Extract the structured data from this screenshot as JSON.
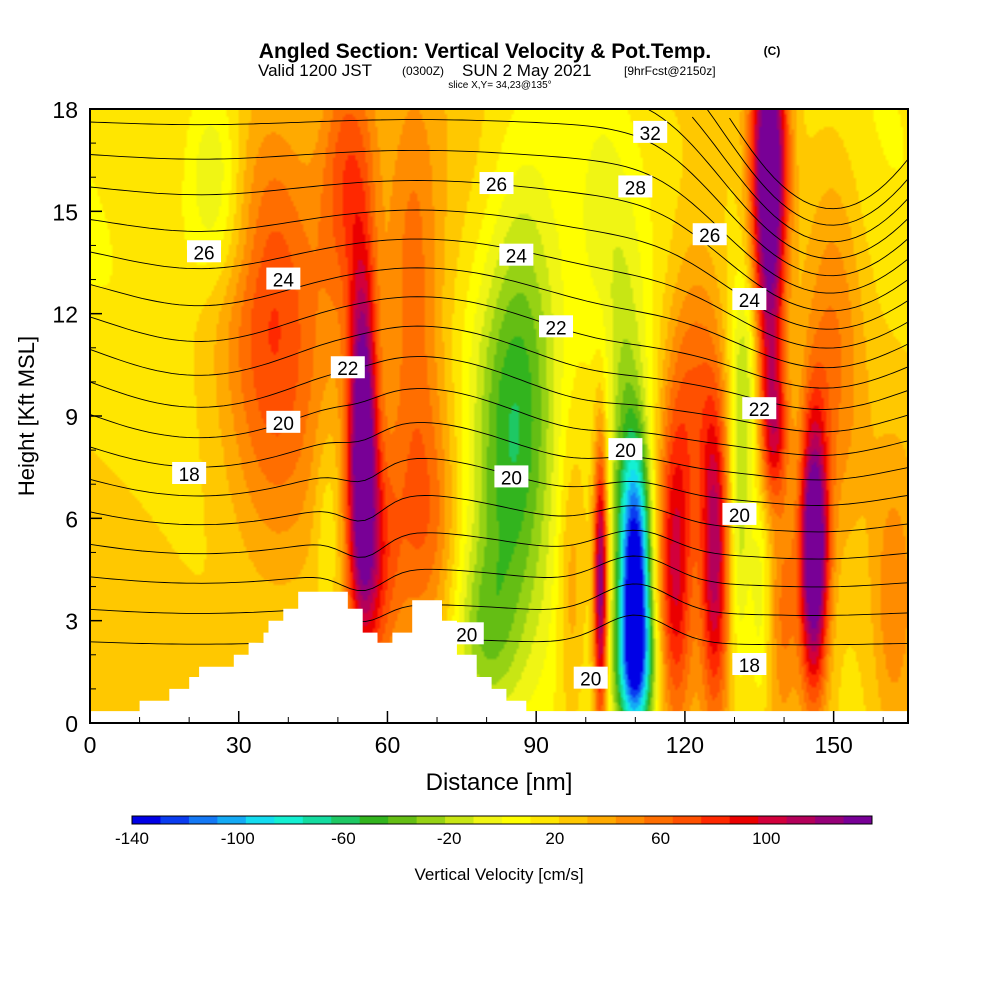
{
  "header": {
    "title_main": "Angled Section: Vertical Velocity & Pot.Temp.",
    "title_unit": "(C)",
    "valid_a": "Valid 1200 JST",
    "valid_b": "(0300Z)",
    "valid_c": "SUN 2 May 2021",
    "valid_d": "[9hrFcst@2150z]",
    "slice": "slice X,Y= 34,23@135°"
  },
  "chart_data": {
    "type": "heatmap",
    "title": "Angled Section: Vertical Velocity & Pot.Temp.",
    "xlabel": "Distance [nm]",
    "ylabel": "Height [Kft MSL]",
    "xlim": [
      0,
      165
    ],
    "ylim": [
      0,
      18
    ],
    "x_ticks": [
      0,
      30,
      60,
      90,
      120,
      150
    ],
    "y_ticks": [
      0,
      3,
      6,
      9,
      12,
      15,
      18
    ],
    "colorbar": {
      "label": "Vertical Velocity [cm/s]",
      "min": -140,
      "max": 140,
      "step": 10,
      "tick_labels": [
        -140,
        -100,
        -60,
        -20,
        20,
        60,
        100
      ],
      "colors": [
        "#0000e6",
        "#0a3cf0",
        "#1478f5",
        "#14aaf5",
        "#14dcf0",
        "#14f0d2",
        "#14dca0",
        "#1ec864",
        "#32b41e",
        "#64be14",
        "#96d214",
        "#c8e614",
        "#f0f514",
        "#ffff00",
        "#ffe600",
        "#ffc800",
        "#ffaa00",
        "#ff8c00",
        "#ff6e00",
        "#ff5000",
        "#ff2800",
        "#eb0000",
        "#d2003c",
        "#b4005a",
        "#960078",
        "#780096"
      ]
    },
    "contour_field": "Pot.Temp. (C)",
    "contour_labels": [
      {
        "text": "32",
        "x": 113,
        "y": 17.3
      },
      {
        "text": "28",
        "x": 110,
        "y": 15.7
      },
      {
        "text": "26",
        "x": 82,
        "y": 15.8
      },
      {
        "text": "26",
        "x": 125,
        "y": 14.3
      },
      {
        "text": "26",
        "x": 23,
        "y": 13.8
      },
      {
        "text": "24",
        "x": 39,
        "y": 13.0
      },
      {
        "text": "24",
        "x": 86,
        "y": 13.7
      },
      {
        "text": "24",
        "x": 133,
        "y": 12.4
      },
      {
        "text": "22",
        "x": 94,
        "y": 11.6
      },
      {
        "text": "22",
        "x": 52,
        "y": 10.4
      },
      {
        "text": "22",
        "x": 135,
        "y": 9.2
      },
      {
        "text": "20",
        "x": 39,
        "y": 8.8
      },
      {
        "text": "20",
        "x": 108,
        "y": 8.0
      },
      {
        "text": "20",
        "x": 85,
        "y": 7.2
      },
      {
        "text": "20",
        "x": 131,
        "y": 6.1
      },
      {
        "text": "20",
        "x": 76,
        "y": 2.6
      },
      {
        "text": "20",
        "x": 101,
        "y": 1.3
      },
      {
        "text": "18",
        "x": 20,
        "y": 7.3
      },
      {
        "text": "18",
        "x": 133,
        "y": 1.7
      }
    ],
    "terrain_profile": [
      [
        0,
        0.35
      ],
      [
        10,
        0.35
      ],
      [
        10,
        0.65
      ],
      [
        16,
        0.65
      ],
      [
        16,
        1.0
      ],
      [
        20,
        1.0
      ],
      [
        20,
        1.35
      ],
      [
        22,
        1.35
      ],
      [
        22,
        1.65
      ],
      [
        29,
        1.65
      ],
      [
        29,
        2.0
      ],
      [
        32,
        2.0
      ],
      [
        32,
        2.35
      ],
      [
        35,
        2.35
      ],
      [
        35,
        2.65
      ],
      [
        36,
        2.65
      ],
      [
        36,
        3.0
      ],
      [
        39,
        3.0
      ],
      [
        39,
        3.35
      ],
      [
        42,
        3.35
      ],
      [
        42,
        3.85
      ],
      [
        52,
        3.85
      ],
      [
        52,
        3.35
      ],
      [
        55,
        3.35
      ],
      [
        55,
        2.65
      ],
      [
        58,
        2.65
      ],
      [
        58,
        2.35
      ],
      [
        61,
        2.35
      ],
      [
        61,
        2.65
      ],
      [
        65,
        2.65
      ],
      [
        65,
        3.6
      ],
      [
        71,
        3.6
      ],
      [
        71,
        3.0
      ],
      [
        74,
        3.0
      ],
      [
        74,
        2.0
      ],
      [
        78,
        2.0
      ],
      [
        78,
        1.35
      ],
      [
        81,
        1.35
      ],
      [
        81,
        1.0
      ],
      [
        84,
        1.0
      ],
      [
        84,
        0.65
      ],
      [
        88,
        0.65
      ],
      [
        88,
        0.35
      ],
      [
        165,
        0.35
      ]
    ],
    "velocity_features": [
      {
        "x": 55,
        "z": 8.5,
        "w": 120,
        "sx": 2.0,
        "sz": 3.5
      },
      {
        "x": 57,
        "z": 4.5,
        "w": 50,
        "sx": 3.5,
        "sz": 2.5
      },
      {
        "x": 37,
        "z": 12,
        "w": 45,
        "sx": 7,
        "sz": 5
      },
      {
        "x": 52,
        "z": 16,
        "w": 50,
        "sx": 4,
        "sz": 3
      },
      {
        "x": 65,
        "z": 13,
        "w": 35,
        "sx": 4,
        "sz": 4
      },
      {
        "x": 68,
        "z": 6,
        "w": 40,
        "sx": 5,
        "sz": 3
      },
      {
        "x": 25,
        "z": 16.5,
        "w": -28,
        "sx": 4,
        "sz": 1.6
      },
      {
        "x": 26,
        "z": 14.2,
        "w": -18,
        "sx": 5,
        "sz": 1.4
      },
      {
        "x": 48,
        "z": 6,
        "w": -18,
        "sx": 2,
        "sz": 2
      },
      {
        "x": 85,
        "z": 8,
        "w": -50,
        "sx": 6,
        "sz": 4
      },
      {
        "x": 79,
        "z": 2.5,
        "w": -35,
        "sx": 5,
        "sz": 2
      },
      {
        "x": 88,
        "z": 12.5,
        "w": -30,
        "sx": 6,
        "sz": 4
      },
      {
        "x": 103,
        "z": 15,
        "w": -18,
        "sx": 4,
        "sz": 3
      },
      {
        "x": 103,
        "z": 4,
        "w": 110,
        "sx": 1.0,
        "sz": 3.0
      },
      {
        "x": 97,
        "z": 4,
        "w": 25,
        "sx": 2,
        "sz": 3
      },
      {
        "x": 108,
        "z": 8,
        "w": -40,
        "sx": 3,
        "sz": 4
      },
      {
        "x": 110,
        "z": 4.2,
        "w": -140,
        "sx": 2.2,
        "sz": 2.6
      },
      {
        "x": 110,
        "z": 1.5,
        "w": -70,
        "sx": 3,
        "sz": 1.5
      },
      {
        "x": 118,
        "z": 4.5,
        "w": 70,
        "sx": 2.5,
        "sz": 3.2
      },
      {
        "x": 126,
        "z": 5,
        "w": 85,
        "sx": 2.0,
        "sz": 3.2
      },
      {
        "x": 122,
        "z": 10,
        "w": 45,
        "sx": 4,
        "sz": 3
      },
      {
        "x": 131,
        "z": 6,
        "w": -30,
        "sx": 1.5,
        "sz": 4
      },
      {
        "x": 133,
        "z": 10.5,
        "w": -25,
        "sx": 2,
        "sz": 2
      },
      {
        "x": 137,
        "z": 17,
        "w": 110,
        "sx": 2.6,
        "sz": 2.5
      },
      {
        "x": 137,
        "z": 12.5,
        "w": 80,
        "sx": 2.2,
        "sz": 3
      },
      {
        "x": 138,
        "z": 8.5,
        "w": 55,
        "sx": 2,
        "sz": 1.5
      },
      {
        "x": 135,
        "z": 3.5,
        "w": -22,
        "sx": 1.3,
        "sz": 2.5
      },
      {
        "x": 140,
        "z": 3.5,
        "w": 35,
        "sx": 2,
        "sz": 2.5
      },
      {
        "x": 146,
        "z": 5,
        "w": 140,
        "sx": 2.0,
        "sz": 2.8
      },
      {
        "x": 150,
        "z": 11,
        "w": 30,
        "sx": 4,
        "sz": 4
      },
      {
        "x": 162,
        "z": 3,
        "w": 25,
        "sx": 3,
        "sz": 3
      }
    ]
  }
}
